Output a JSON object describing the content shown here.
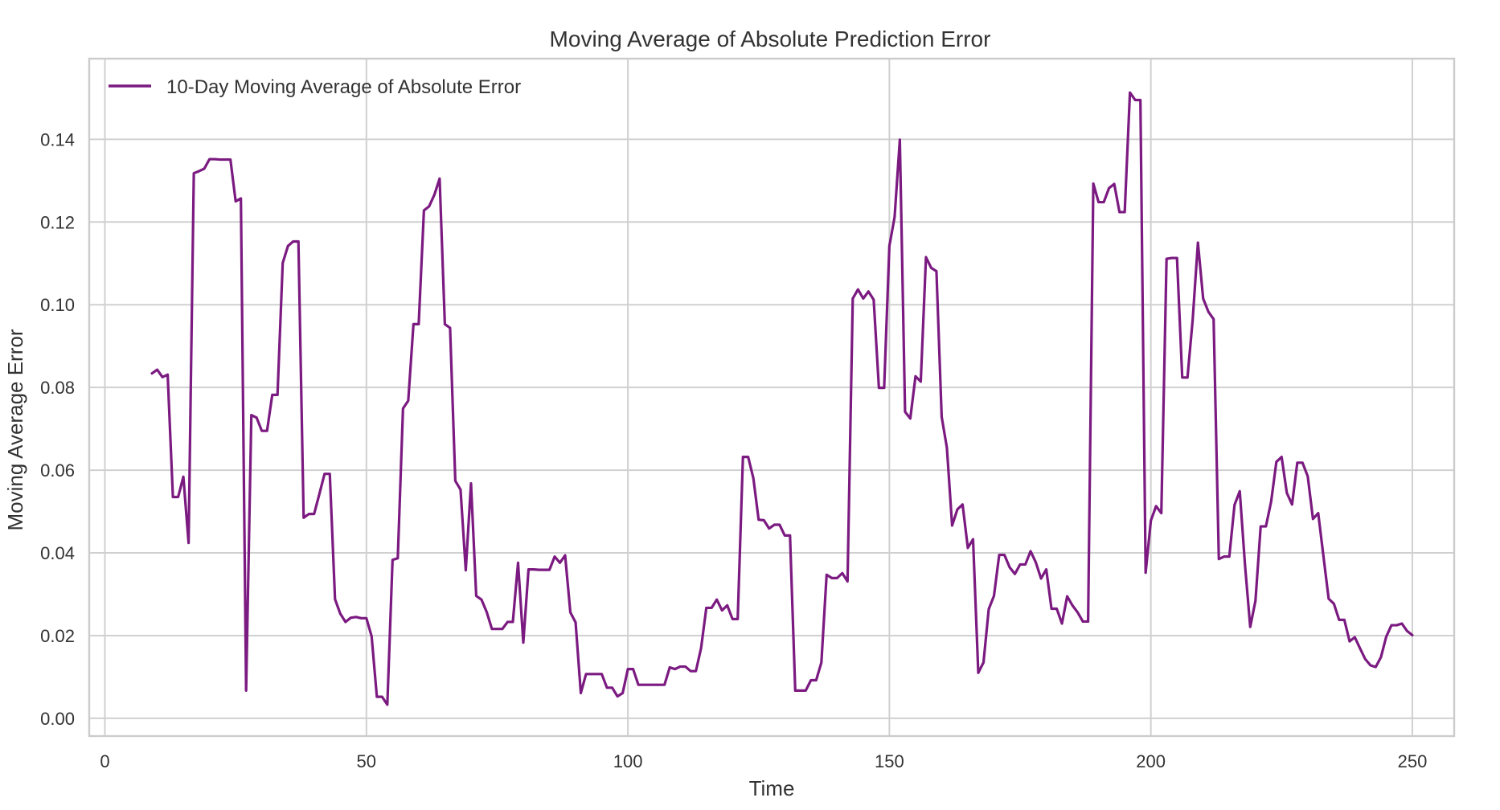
{
  "chart_data": {
    "type": "line",
    "title": "Moving Average of Absolute Prediction Error",
    "xlabel": "Time",
    "ylabel": "Moving Average Error",
    "xlim": [
      -3,
      258
    ],
    "ylim": [
      -0.0043,
      0.1595
    ],
    "xticks": [
      0,
      50,
      100,
      150,
      200,
      250
    ],
    "xtick_labels": [
      "0",
      "50",
      "100",
      "150",
      "200",
      "250"
    ],
    "yticks": [
      0.0,
      0.02,
      0.04,
      0.06,
      0.08,
      0.1,
      0.12,
      0.14
    ],
    "ytick_labels": [
      "0.00",
      "0.02",
      "0.04",
      "0.06",
      "0.08",
      "0.10",
      "0.12",
      "0.14"
    ],
    "grid": true,
    "legend_position": "top-left",
    "colors": {
      "line": "#7b1a80",
      "grid": "#d0d0d0",
      "frame": "#cccccc",
      "text": "#333333"
    },
    "series": [
      {
        "name": "10-Day Moving Average of Absolute Error",
        "x_start": 9,
        "values": [
          0.0834,
          0.0843,
          0.0825,
          0.0831,
          0.0535,
          0.0535,
          0.0584,
          0.0424,
          0.1318,
          0.1323,
          0.1329,
          0.1352,
          0.1352,
          0.1351,
          0.1351,
          0.1351,
          0.125,
          0.1257,
          0.0067,
          0.0733,
          0.0727,
          0.0695,
          0.0695,
          0.0782,
          0.0782,
          0.1101,
          0.1142,
          0.1153,
          0.1153,
          0.0485,
          0.0494,
          0.0494,
          0.0542,
          0.0591,
          0.0591,
          0.0288,
          0.0253,
          0.0233,
          0.0243,
          0.0245,
          0.0242,
          0.0242,
          0.0198,
          0.0052,
          0.0052,
          0.0033,
          0.0383,
          0.0387,
          0.0749,
          0.0768,
          0.0953,
          0.0953,
          0.1228,
          0.1238,
          0.1266,
          0.1305,
          0.0953,
          0.0944,
          0.0574,
          0.0553,
          0.0358,
          0.0568,
          0.0296,
          0.0287,
          0.0257,
          0.0216,
          0.0216,
          0.0216,
          0.0233,
          0.0233,
          0.0376,
          0.0183,
          0.036,
          0.036,
          0.0359,
          0.0359,
          0.0359,
          0.0391,
          0.0376,
          0.0394,
          0.0256,
          0.0232,
          0.0061,
          0.0107,
          0.0107,
          0.0107,
          0.0107,
          0.0074,
          0.0074,
          0.0053,
          0.0061,
          0.0119,
          0.0119,
          0.0081,
          0.0081,
          0.0081,
          0.0081,
          0.0081,
          0.0081,
          0.0123,
          0.0119,
          0.0125,
          0.0125,
          0.0114,
          0.0114,
          0.017,
          0.0267,
          0.0267,
          0.0287,
          0.0261,
          0.0273,
          0.024,
          0.024,
          0.0632,
          0.0632,
          0.058,
          0.048,
          0.0479,
          0.0459,
          0.0468,
          0.0468,
          0.0442,
          0.0442,
          0.0067,
          0.0067,
          0.0067,
          0.0092,
          0.0092,
          0.0135,
          0.0347,
          0.0339,
          0.0339,
          0.0351,
          0.0331,
          0.1015,
          0.1037,
          0.1015,
          0.1032,
          0.1012,
          0.0799,
          0.0799,
          0.1142,
          0.1212,
          0.1399,
          0.0741,
          0.0725,
          0.0827,
          0.0814,
          0.1115,
          0.1089,
          0.1081,
          0.0729,
          0.0654,
          0.0466,
          0.0505,
          0.0517,
          0.0412,
          0.0433,
          0.011,
          0.0135,
          0.0264,
          0.0296,
          0.0395,
          0.0395,
          0.0365,
          0.0349,
          0.0372,
          0.0372,
          0.0404,
          0.0377,
          0.0338,
          0.036,
          0.0265,
          0.0265,
          0.0229,
          0.0295,
          0.0273,
          0.0256,
          0.0234,
          0.0234,
          0.1293,
          0.1248,
          0.1248,
          0.1282,
          0.1292,
          0.1224,
          0.1224,
          0.1513,
          0.1495,
          0.1495,
          0.0352,
          0.0478,
          0.0513,
          0.0496,
          0.1111,
          0.1113,
          0.1113,
          0.0824,
          0.0824,
          0.0964,
          0.115,
          0.1015,
          0.0983,
          0.0965,
          0.0385,
          0.0391,
          0.0391,
          0.0516,
          0.0549,
          0.0371,
          0.0221,
          0.0284,
          0.0464,
          0.0464,
          0.0524,
          0.062,
          0.0632,
          0.0545,
          0.0517,
          0.0618,
          0.0618,
          0.0585,
          0.0482,
          0.0496,
          0.0392,
          0.0289,
          0.0277,
          0.0238,
          0.0238,
          0.0186,
          0.0196,
          0.0169,
          0.0143,
          0.0128,
          0.0124,
          0.0148,
          0.0197,
          0.0225,
          0.0225,
          0.0229,
          0.0211,
          0.0201
        ]
      }
    ]
  }
}
